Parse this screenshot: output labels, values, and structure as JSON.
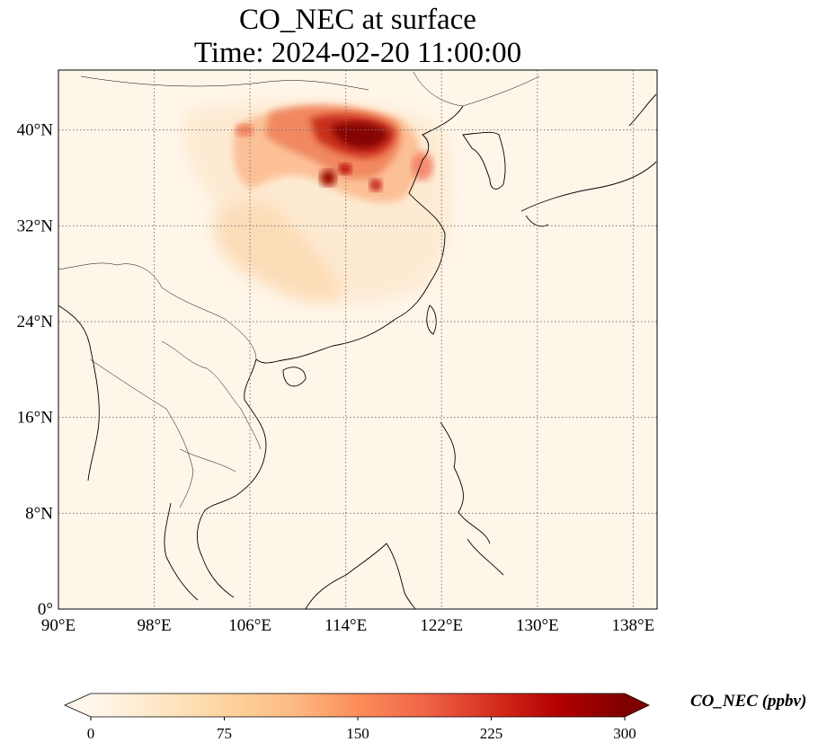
{
  "title_line1": "CO_NEC at surface",
  "title_line2": "Time: 2024-02-20 11:00:00",
  "lon_ticks": [
    "90°E",
    "98°E",
    "106°E",
    "114°E",
    "122°E",
    "130°E",
    "138°E"
  ],
  "lat_ticks": [
    "0°",
    "8°N",
    "16°N",
    "24°N",
    "32°N",
    "40°N"
  ],
  "lon_values": [
    90,
    98,
    106,
    114,
    122,
    130,
    138
  ],
  "lat_values": [
    0,
    8,
    16,
    24,
    32,
    40
  ],
  "extent": {
    "lon": [
      90,
      140
    ],
    "lat": [
      0,
      45
    ]
  },
  "colorbar": {
    "label": "CO_NEC (ppbv)",
    "tick_labels": [
      "0",
      "75",
      "150",
      "225",
      "300"
    ],
    "tick_values": [
      0,
      75,
      150,
      225,
      300
    ],
    "range": [
      0,
      300
    ],
    "extend": "both",
    "colormap": "OrRd",
    "colors": [
      "#fff7ec",
      "#fee8c8",
      "#fdd49e",
      "#fdbb84",
      "#fc8d59",
      "#ef6548",
      "#d7301f",
      "#b30000",
      "#7f0000"
    ]
  },
  "gridlines": "dotted"
}
